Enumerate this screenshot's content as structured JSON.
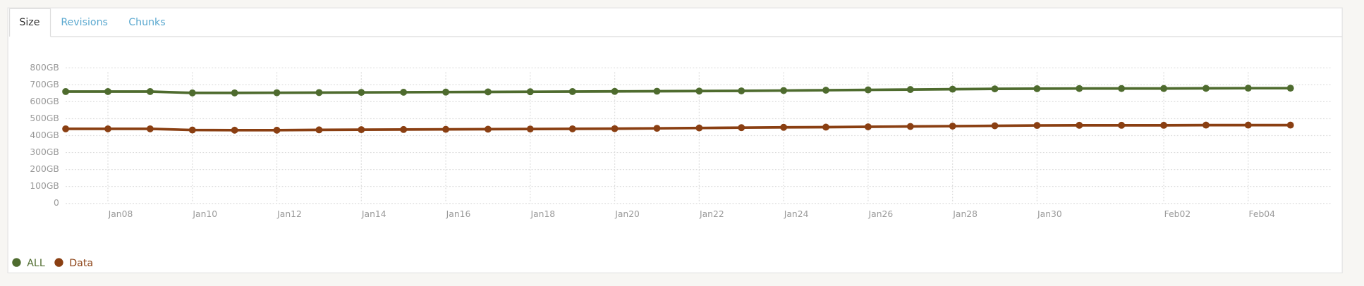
{
  "tabs": [
    "Size",
    "Revisions",
    "Chunks"
  ],
  "chart_data": {
    "type": "line",
    "categories": [
      null,
      "Jan08",
      null,
      "Jan10",
      null,
      "Jan12",
      null,
      "Jan14",
      null,
      "Jan16",
      null,
      "Jan18",
      null,
      "Jan20",
      null,
      "Jan22",
      null,
      "Jan24",
      null,
      "Jan26",
      null,
      "Jan28",
      null,
      "Jan30",
      null,
      null,
      "Feb02",
      null,
      "Feb04",
      null
    ],
    "series": [
      {
        "name": "ALL",
        "color": "#4e6b2e",
        "values": [
          660,
          660,
          660,
          652,
          652,
          653,
          654,
          655,
          656,
          657,
          658,
          659,
          660,
          661,
          662,
          663,
          664,
          666,
          668,
          670,
          672,
          674,
          676,
          677,
          678,
          678,
          678,
          679,
          680,
          680
        ]
      },
      {
        "name": "Data",
        "color": "#8a3f12",
        "values": [
          440,
          440,
          440,
          433,
          432,
          432,
          434,
          435,
          436,
          437,
          438,
          439,
          440,
          441,
          443,
          445,
          447,
          449,
          450,
          452,
          454,
          456,
          458,
          460,
          461,
          461,
          461,
          462,
          462,
          462
        ]
      }
    ],
    "ylim": [
      0,
      800
    ],
    "yticks": [
      0,
      {
        "value": 100,
        "label": "100GB"
      },
      {
        "value": 200,
        "label": "200GB"
      },
      {
        "value": 300,
        "label": "300GB"
      },
      {
        "value": 400,
        "label": "400GB"
      },
      {
        "value": 500,
        "label": "500GB"
      },
      {
        "value": 600,
        "label": "600GB"
      },
      {
        "value": 700,
        "label": "700GB"
      },
      {
        "value": 800,
        "label": "800GB"
      }
    ],
    "grid": true,
    "legend": "bottom-left"
  }
}
